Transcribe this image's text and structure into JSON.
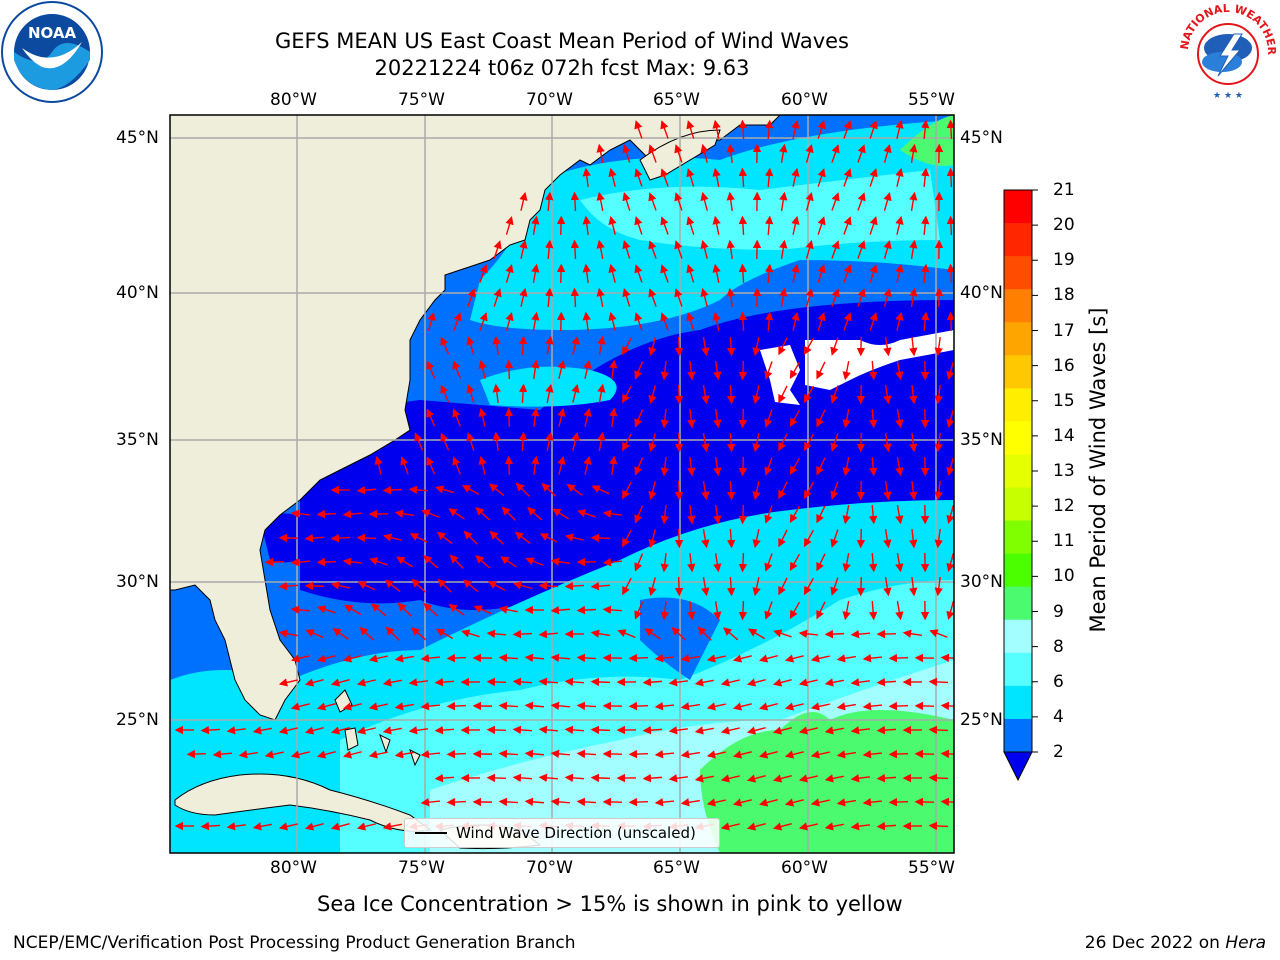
{
  "header": {
    "title_line1": "GEFS MEAN US East Coast Mean Period of Wind Waves",
    "title_line2": "20221224 t06z 072h fcst   Max: 9.63"
  },
  "logos": {
    "left": "NOAA",
    "right": "NATIONAL WEATHER SERVICE",
    "right_color": "#e4161b",
    "left_color": "#0b4a9f"
  },
  "map": {
    "lon_labels": [
      "80°W",
      "75°W",
      "70°W",
      "65°W",
      "60°W",
      "55°W"
    ],
    "lat_labels": [
      "45°N",
      "40°N",
      "35°N",
      "30°N",
      "25°N"
    ],
    "land_color": "#efeedb",
    "ocean_colors": {
      "band_2_4": "#0070ff",
      "band_4_6": "#00e5ff",
      "band_6_8": "#55ffff",
      "band_8_9": "#a3ffff",
      "band_9_10": "#4cfa70",
      "below_2": "#0000ee"
    },
    "arrow_color": "#ff0000",
    "legend_label": "Wind Wave Direction (unscaled)"
  },
  "colorbar": {
    "title": "Mean Period of Wind Waves [s]",
    "labels": [
      "21",
      "20",
      "19",
      "18",
      "17",
      "16",
      "15",
      "14",
      "13",
      "12",
      "11",
      "10",
      "9",
      "8",
      "6",
      "4",
      "2"
    ],
    "colors": [
      "#ff0000",
      "#ff2600",
      "#ff4c00",
      "#ff7f00",
      "#ffa500",
      "#ffc800",
      "#ffee00",
      "#ffff00",
      "#e5ff00",
      "#c7ff00",
      "#7fff00",
      "#4cff00",
      "#4cfa70",
      "#a3ffff",
      "#55ffff",
      "#00e5ff",
      "#0070ff"
    ],
    "under_color": "#0000ee"
  },
  "subtitle": "Sea Ice Concentration > 15% is shown in pink to yellow",
  "footer": {
    "left": "NCEP/EMC/Verification Post Processing Product Generation Branch",
    "right_date": "26 Dec 2022 on ",
    "right_host": "Hera"
  }
}
